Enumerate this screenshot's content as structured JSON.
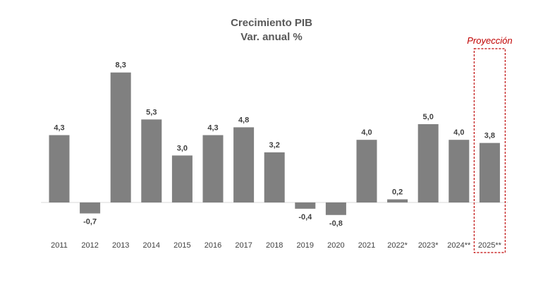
{
  "chart_data": {
    "type": "bar",
    "title": "Crecimiento PIB",
    "subtitle": "Var. anual %",
    "categories": [
      "2011",
      "2012",
      "2013",
      "2014",
      "2015",
      "2016",
      "2017",
      "2018",
      "2019",
      "2020",
      "2021",
      "2022*",
      "2023*",
      "2024**",
      "2025**"
    ],
    "values": [
      4.3,
      -0.7,
      8.3,
      5.3,
      3.0,
      4.3,
      4.8,
      3.2,
      -0.4,
      -0.8,
      4.0,
      0.2,
      5.0,
      4.0,
      3.8
    ],
    "data_labels": [
      "4,3",
      "-0,7",
      "8,3",
      "5,3",
      "3,0",
      "4,3",
      "4,8",
      "3,2",
      "-0,4",
      "-0,8",
      "4,0",
      "0,2",
      "5,0",
      "4,0",
      "3,8"
    ],
    "bar_color": "#808080",
    "xlabel": "",
    "ylabel": "",
    "grid": false,
    "legend": "none",
    "annotations": [
      {
        "text": "Proyección",
        "category": "2025**",
        "style": "dashed-box",
        "color": "#C00000"
      }
    ]
  }
}
